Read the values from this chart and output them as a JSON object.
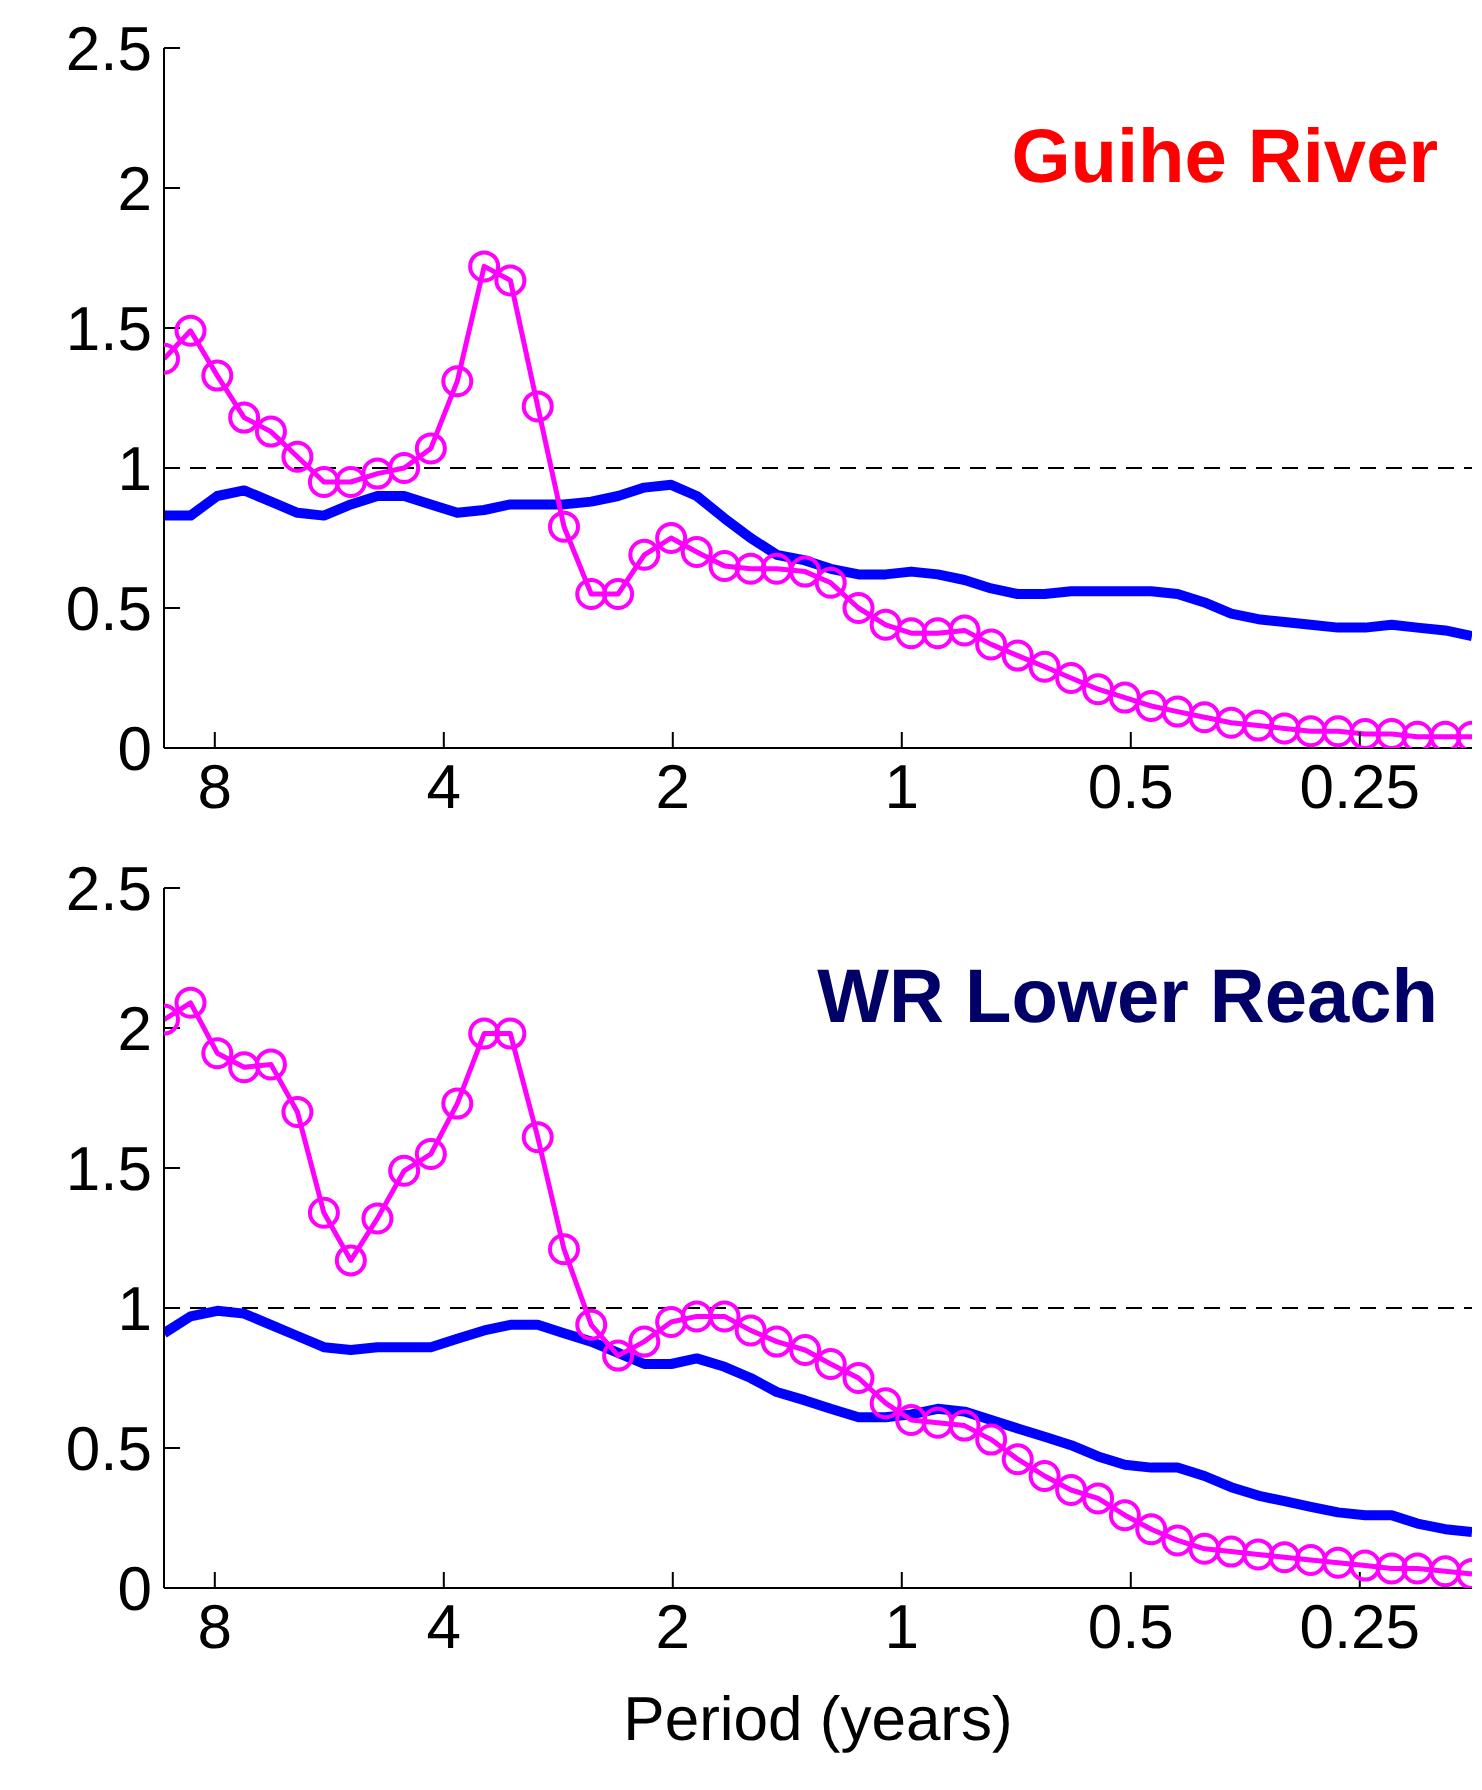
{
  "chart_data": [
    {
      "type": "line",
      "title": "Guihe River",
      "x": [
        9.33,
        8.61,
        7.94,
        7.32,
        6.75,
        6.23,
        5.75,
        5.3,
        4.89,
        4.51,
        4.16,
        3.84,
        3.54,
        3.27,
        3.01,
        2.78,
        2.56,
        2.36,
        2.18,
        2.01,
        1.86,
        1.71,
        1.58,
        1.46,
        1.34,
        1.24,
        1.14,
        1.05,
        0.972,
        0.897,
        0.827,
        0.763,
        0.704,
        0.649,
        0.599,
        0.552,
        0.509,
        0.47,
        0.434,
        0.4,
        0.369,
        0.34,
        0.314,
        0.29,
        0.267,
        0.246,
        0.227,
        0.21,
        0.193,
        0.178
      ],
      "xlim": [
        9.33,
        0.178
      ],
      "xticks": [
        8,
        4,
        2,
        1,
        0.5,
        0.25
      ],
      "log": "x",
      "ylim": [
        0,
        2.5
      ],
      "yticks": [
        0,
        0.5,
        1,
        1.5,
        2,
        2.5
      ],
      "series": [
        {
          "color": "#0000ff",
          "marker": "none",
          "values": [
            0.83,
            0.83,
            0.9,
            0.92,
            0.88,
            0.84,
            0.83,
            0.87,
            0.9,
            0.9,
            0.87,
            0.84,
            0.85,
            0.87,
            0.87,
            0.87,
            0.88,
            0.9,
            0.93,
            0.94,
            0.9,
            0.82,
            0.75,
            0.69,
            0.67,
            0.64,
            0.62,
            0.62,
            0.63,
            0.62,
            0.6,
            0.57,
            0.55,
            0.55,
            0.56,
            0.56,
            0.56,
            0.56,
            0.55,
            0.52,
            0.48,
            0.46,
            0.45,
            0.44,
            0.43,
            0.43,
            0.44,
            0.43,
            0.42,
            0.4
          ]
        },
        {
          "color": "#ff00ff",
          "marker": "circle",
          "values": [
            1.39,
            1.49,
            1.33,
            1.18,
            1.13,
            1.04,
            0.95,
            0.95,
            0.98,
            1.0,
            1.07,
            1.31,
            1.72,
            1.67,
            1.22,
            0.79,
            0.55,
            0.55,
            0.69,
            0.75,
            0.7,
            0.65,
            0.64,
            0.64,
            0.63,
            0.59,
            0.5,
            0.44,
            0.41,
            0.41,
            0.42,
            0.37,
            0.33,
            0.29,
            0.25,
            0.21,
            0.18,
            0.15,
            0.13,
            0.11,
            0.09,
            0.08,
            0.07,
            0.06,
            0.06,
            0.05,
            0.05,
            0.04,
            0.04,
            0.04
          ]
        }
      ],
      "ref_lines": [
        {
          "axis": "y",
          "value": 1,
          "color": "#000000",
          "line_style": "dashed"
        }
      ]
    },
    {
      "type": "line",
      "title": "WR Lower Reach",
      "xlabel": "Period (years)",
      "x": [
        9.33,
        8.61,
        7.94,
        7.32,
        6.75,
        6.23,
        5.75,
        5.3,
        4.89,
        4.51,
        4.16,
        3.84,
        3.54,
        3.27,
        3.01,
        2.78,
        2.56,
        2.36,
        2.18,
        2.01,
        1.86,
        1.71,
        1.58,
        1.46,
        1.34,
        1.24,
        1.14,
        1.05,
        0.972,
        0.897,
        0.827,
        0.763,
        0.704,
        0.649,
        0.599,
        0.552,
        0.509,
        0.47,
        0.434,
        0.4,
        0.369,
        0.34,
        0.314,
        0.29,
        0.267,
        0.246,
        0.227,
        0.21,
        0.193,
        0.178
      ],
      "xlim": [
        9.33,
        0.178
      ],
      "xticks": [
        8,
        4,
        2,
        1,
        0.5,
        0.25
      ],
      "log": "x",
      "ylim": [
        0,
        2.5
      ],
      "yticks": [
        0,
        0.5,
        1,
        1.5,
        2,
        2.5
      ],
      "series": [
        {
          "color": "#0000ff",
          "marker": "none",
          "values": [
            0.91,
            0.97,
            0.99,
            0.98,
            0.94,
            0.9,
            0.86,
            0.85,
            0.86,
            0.86,
            0.86,
            0.89,
            0.92,
            0.94,
            0.94,
            0.91,
            0.88,
            0.84,
            0.8,
            0.8,
            0.82,
            0.79,
            0.75,
            0.7,
            0.67,
            0.64,
            0.61,
            0.61,
            0.62,
            0.64,
            0.63,
            0.6,
            0.57,
            0.54,
            0.51,
            0.47,
            0.44,
            0.43,
            0.43,
            0.4,
            0.36,
            0.33,
            0.31,
            0.29,
            0.27,
            0.26,
            0.26,
            0.23,
            0.21,
            0.2
          ]
        },
        {
          "color": "#ff00ff",
          "marker": "circle",
          "values": [
            2.03,
            2.09,
            1.91,
            1.86,
            1.87,
            1.7,
            1.34,
            1.17,
            1.32,
            1.49,
            1.55,
            1.73,
            1.98,
            1.98,
            1.61,
            1.21,
            0.94,
            0.83,
            0.88,
            0.95,
            0.97,
            0.97,
            0.92,
            0.88,
            0.85,
            0.8,
            0.75,
            0.66,
            0.6,
            0.59,
            0.58,
            0.53,
            0.46,
            0.4,
            0.35,
            0.32,
            0.26,
            0.21,
            0.17,
            0.14,
            0.13,
            0.12,
            0.11,
            0.1,
            0.09,
            0.08,
            0.07,
            0.07,
            0.06,
            0.05
          ]
        }
      ],
      "ref_lines": [
        {
          "axis": "y",
          "value": 1,
          "color": "#000000",
          "line_style": "dashed"
        }
      ]
    }
  ]
}
